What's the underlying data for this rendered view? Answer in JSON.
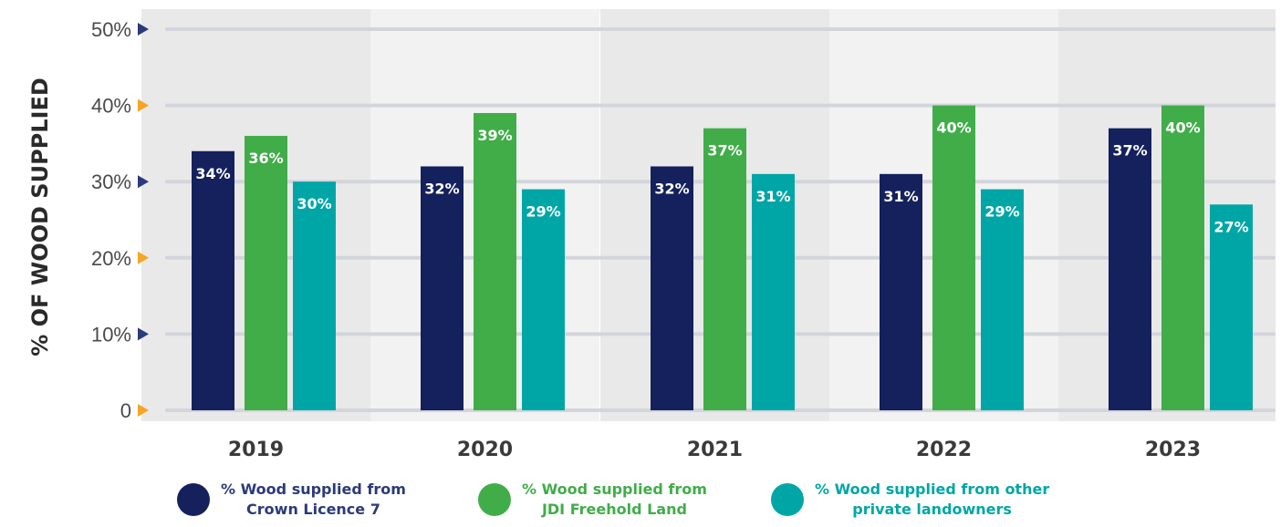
{
  "chart_data": {
    "type": "bar",
    "ylabel": "% OF WOOD SUPPLIED",
    "ylim": [
      0,
      50
    ],
    "y_ticks": [
      "0",
      "10%",
      "20%",
      "30%",
      "40%",
      "50%"
    ],
    "y_tick_values": [
      0,
      10,
      20,
      30,
      40,
      50
    ],
    "grid": true,
    "categories": [
      "2019",
      "2020",
      "2021",
      "2022",
      "2023"
    ],
    "series": [
      {
        "name": "% Wood supplied from\nCrown Licence 7",
        "values": [
          34,
          32,
          32,
          31,
          37
        ],
        "labels": [
          "34%",
          "32%",
          "32%",
          "31%",
          "37%"
        ],
        "color": "#14215c"
      },
      {
        "name": "% Wood supplied from\nJDI Freehold Land",
        "values": [
          36,
          39,
          37,
          40,
          40
        ],
        "labels": [
          "36%",
          "39%",
          "37%",
          "40%",
          "40%"
        ],
        "color": "#41ad49"
      },
      {
        "name": "% Wood supplied from other\nprivate landowners",
        "values": [
          30,
          29,
          31,
          29,
          27
        ],
        "labels": [
          "30%",
          "29%",
          "31%",
          "29%",
          "27%"
        ],
        "color": "#00a6a6"
      }
    ],
    "legend_position": "bottom",
    "colors": {
      "band_light": "#f2f2f2",
      "band_dark": "#e9e9e9",
      "gridline": "#d3d5dc",
      "marker_navy": "#2b3a7a",
      "marker_orange": "#f5a623",
      "legend_text_navy": "#2b3a7a",
      "legend_text_green": "#41ad49",
      "legend_text_teal": "#00a6a6"
    }
  }
}
